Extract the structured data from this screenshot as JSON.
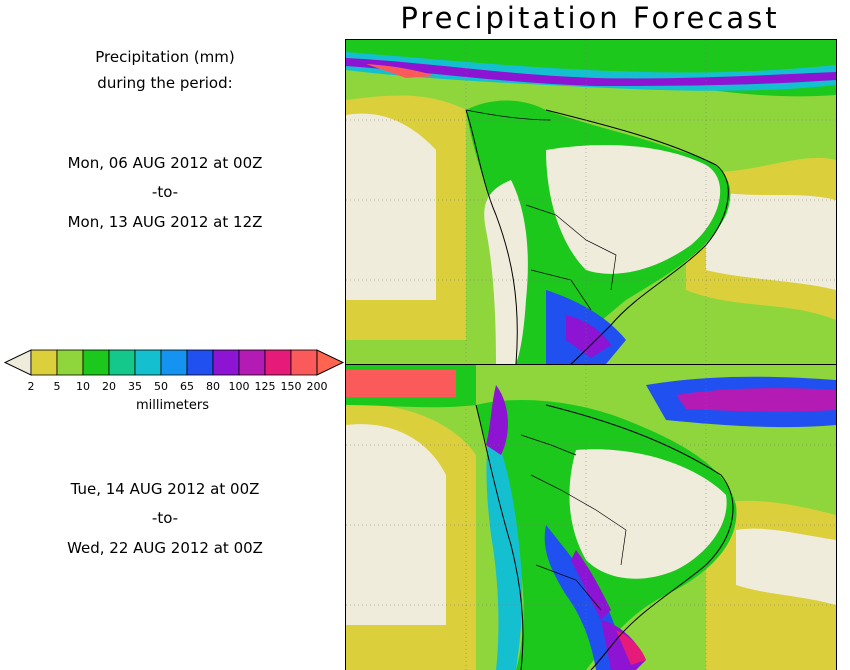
{
  "title": "Precipitation Forecast",
  "legend": {
    "heading_line1": "Precipitation (mm)",
    "heading_line2": "during the period:",
    "units": "millimeters",
    "ticks": [
      "2",
      "5",
      "10",
      "20",
      "35",
      "50",
      "65",
      "80",
      "100",
      "125",
      "150",
      "200"
    ],
    "colors": [
      "#f0ecdc",
      "#dccf3c",
      "#8ed63c",
      "#1cc81c",
      "#14c88c",
      "#14c0d0",
      "#1494f0",
      "#2050f0",
      "#8c14d2",
      "#b41ab4",
      "#e61a78",
      "#fa5a5a",
      "#ff6450"
    ]
  },
  "periods": [
    {
      "start": "Mon, 06 AUG 2012 at 00Z",
      "sep": "-to-",
      "end": "Mon, 13 AUG 2012 at 12Z"
    },
    {
      "start": "Tue, 14 AUG 2012 at 00Z",
      "sep": "-to-",
      "end": "Wed, 22 AUG 2012 at 00Z"
    }
  ]
}
